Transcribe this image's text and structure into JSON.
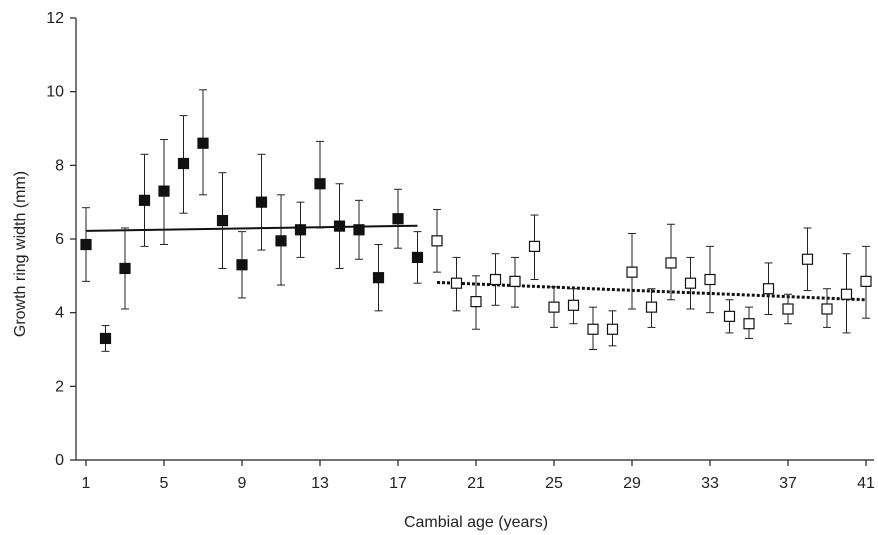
{
  "chart_data": {
    "type": "scatter",
    "xlabel": "Cambial age (years)",
    "ylabel": "Growth ring width (mm)",
    "xlim": [
      1,
      41
    ],
    "ylim": [
      0,
      12
    ],
    "xticks": [
      1,
      5,
      9,
      13,
      17,
      21,
      25,
      29,
      33,
      37,
      41
    ],
    "yticks": [
      0,
      2,
      4,
      6,
      8,
      10,
      12
    ],
    "grid": false,
    "series": [
      {
        "marker": "filled-square",
        "color": "#111111",
        "points": [
          {
            "x": 1,
            "y": 5.85,
            "lo": 4.85,
            "hi": 6.85
          },
          {
            "x": 2,
            "y": 3.3,
            "lo": 2.95,
            "hi": 3.65
          },
          {
            "x": 3,
            "y": 5.2,
            "lo": 4.1,
            "hi": 6.3
          },
          {
            "x": 4,
            "y": 7.05,
            "lo": 5.8,
            "hi": 8.3
          },
          {
            "x": 5,
            "y": 7.3,
            "lo": 5.85,
            "hi": 8.7
          },
          {
            "x": 6,
            "y": 8.05,
            "lo": 6.7,
            "hi": 9.35
          },
          {
            "x": 7,
            "y": 8.6,
            "lo": 7.2,
            "hi": 10.05
          },
          {
            "x": 8,
            "y": 6.5,
            "lo": 5.2,
            "hi": 7.8
          },
          {
            "x": 9,
            "y": 5.3,
            "lo": 4.4,
            "hi": 6.2
          },
          {
            "x": 10,
            "y": 7.0,
            "lo": 5.7,
            "hi": 8.3
          },
          {
            "x": 11,
            "y": 5.95,
            "lo": 4.75,
            "hi": 7.2
          },
          {
            "x": 12,
            "y": 6.25,
            "lo": 5.5,
            "hi": 7.0
          },
          {
            "x": 13,
            "y": 7.5,
            "lo": 6.3,
            "hi": 8.65
          },
          {
            "x": 14,
            "y": 6.35,
            "lo": 5.2,
            "hi": 7.5
          },
          {
            "x": 15,
            "y": 6.25,
            "lo": 5.45,
            "hi": 7.05
          },
          {
            "x": 16,
            "y": 4.95,
            "lo": 4.05,
            "hi": 5.85
          },
          {
            "x": 17,
            "y": 6.55,
            "lo": 5.75,
            "hi": 7.35
          },
          {
            "x": 18,
            "y": 5.5,
            "lo": 4.8,
            "hi": 6.2
          }
        ],
        "trend": {
          "style": "solid",
          "x": [
            1,
            18
          ],
          "y": [
            6.22,
            6.36
          ]
        }
      },
      {
        "marker": "open-square",
        "color": "#111111",
        "points": [
          {
            "x": 19,
            "y": 5.95,
            "lo": 5.1,
            "hi": 6.8
          },
          {
            "x": 20,
            "y": 4.8,
            "lo": 4.05,
            "hi": 5.5
          },
          {
            "x": 21,
            "y": 4.3,
            "lo": 3.55,
            "hi": 5.0
          },
          {
            "x": 22,
            "y": 4.9,
            "lo": 4.2,
            "hi": 5.6
          },
          {
            "x": 23,
            "y": 4.85,
            "lo": 4.15,
            "hi": 5.5
          },
          {
            "x": 24,
            "y": 5.8,
            "lo": 4.9,
            "hi": 6.65
          },
          {
            "x": 25,
            "y": 4.15,
            "lo": 3.6,
            "hi": 4.7
          },
          {
            "x": 26,
            "y": 4.2,
            "lo": 3.7,
            "hi": 4.65
          },
          {
            "x": 27,
            "y": 3.55,
            "lo": 3.0,
            "hi": 4.15
          },
          {
            "x": 28,
            "y": 3.55,
            "lo": 3.1,
            "hi": 4.05
          },
          {
            "x": 29,
            "y": 5.1,
            "lo": 4.1,
            "hi": 6.15
          },
          {
            "x": 30,
            "y": 4.15,
            "lo": 3.6,
            "hi": 4.65
          },
          {
            "x": 31,
            "y": 5.35,
            "lo": 4.35,
            "hi": 6.4
          },
          {
            "x": 32,
            "y": 4.8,
            "lo": 4.1,
            "hi": 5.5
          },
          {
            "x": 33,
            "y": 4.9,
            "lo": 4.0,
            "hi": 5.8
          },
          {
            "x": 34,
            "y": 3.9,
            "lo": 3.45,
            "hi": 4.35
          },
          {
            "x": 35,
            "y": 3.7,
            "lo": 3.3,
            "hi": 4.15
          },
          {
            "x": 36,
            "y": 4.65,
            "lo": 3.95,
            "hi": 5.35
          },
          {
            "x": 37,
            "y": 4.1,
            "lo": 3.7,
            "hi": 4.5
          },
          {
            "x": 38,
            "y": 5.45,
            "lo": 4.6,
            "hi": 6.3
          },
          {
            "x": 39,
            "y": 4.1,
            "lo": 3.6,
            "hi": 4.65
          },
          {
            "x": 40,
            "y": 4.5,
            "lo": 3.45,
            "hi": 5.6
          },
          {
            "x": 41,
            "y": 4.85,
            "lo": 3.85,
            "hi": 5.8
          }
        ],
        "trend": {
          "style": "dotted",
          "x": [
            19,
            41
          ],
          "y": [
            4.82,
            4.35
          ]
        }
      }
    ]
  }
}
